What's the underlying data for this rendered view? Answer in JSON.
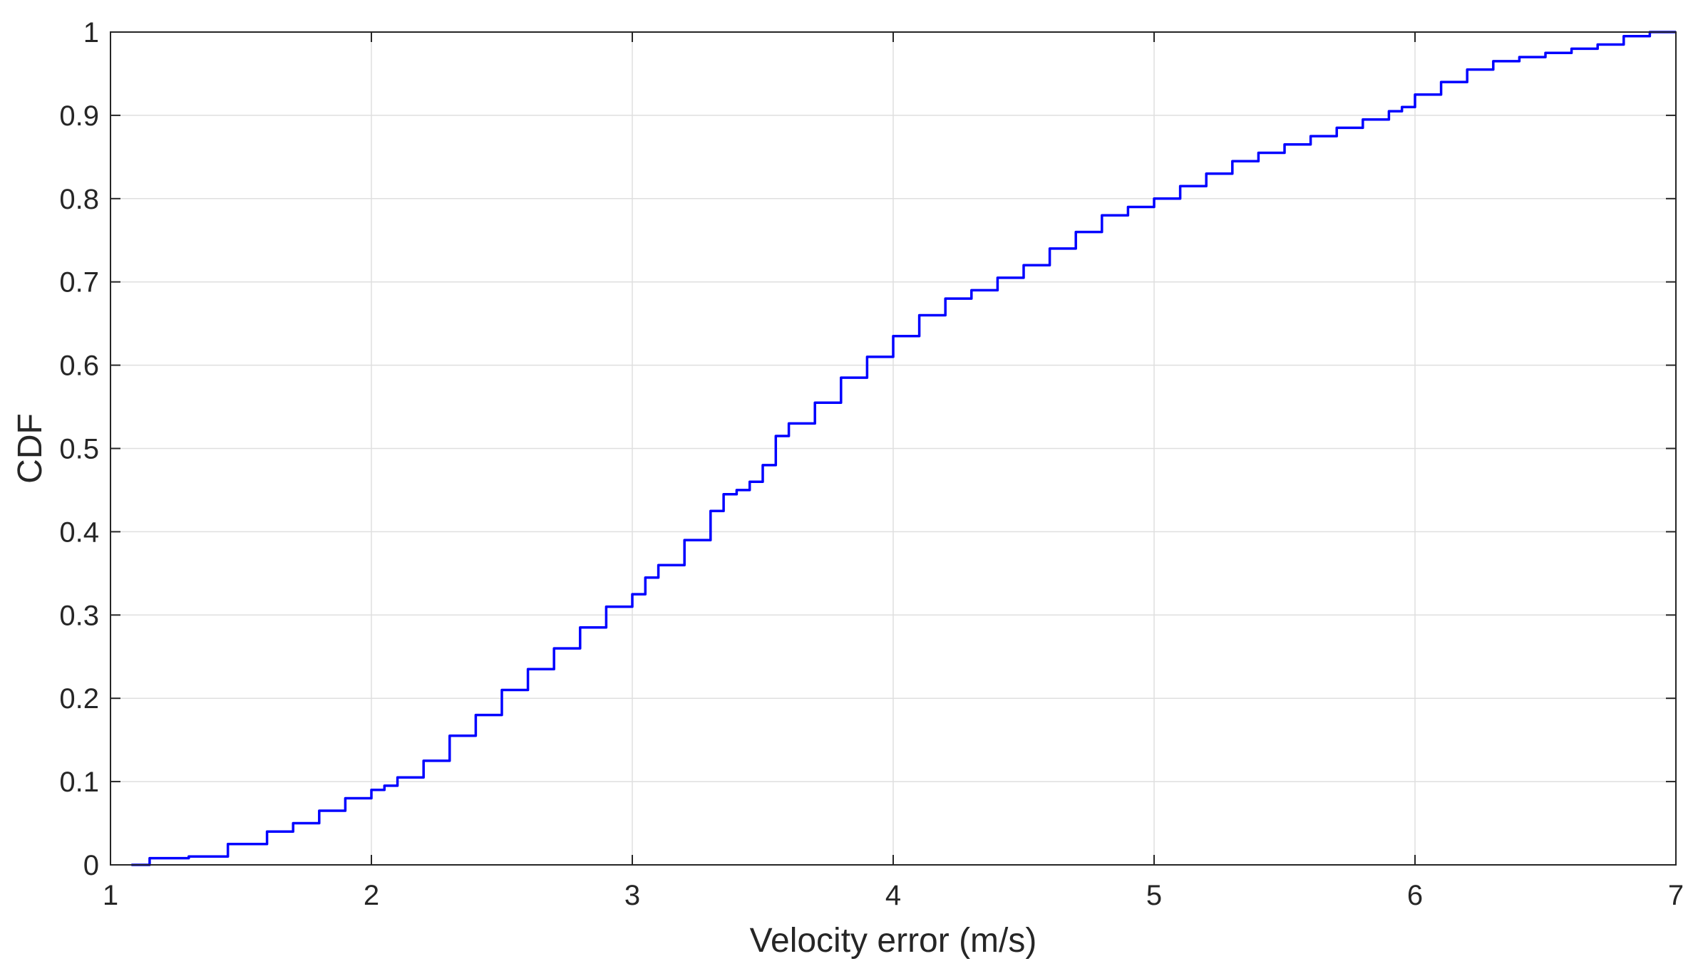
{
  "chart_data": {
    "type": "line",
    "title": "",
    "xlabel": "Velocity error (m/s)",
    "ylabel": "CDF",
    "xlim": [
      1,
      7
    ],
    "ylim": [
      0,
      1
    ],
    "xticks": [
      "1",
      "2",
      "3",
      "4",
      "5",
      "6",
      "7"
    ],
    "yticks": [
      "0",
      "0.1",
      "0.2",
      "0.3",
      "0.4",
      "0.5",
      "0.6",
      "0.7",
      "0.8",
      "0.9",
      "1"
    ],
    "grid": true,
    "line_color": "#0000ff",
    "series": [
      {
        "x": [
          1.08,
          1.15,
          1.3,
          1.45,
          1.6,
          1.7,
          1.8,
          1.9,
          2.0,
          2.05,
          2.1,
          2.2,
          2.3,
          2.4,
          2.5,
          2.6,
          2.7,
          2.8,
          2.9,
          3.0,
          3.05,
          3.1,
          3.2,
          3.3,
          3.35,
          3.4,
          3.45,
          3.5,
          3.55,
          3.6,
          3.7,
          3.8,
          3.9,
          4.0,
          4.1,
          4.2,
          4.3,
          4.4,
          4.5,
          4.6,
          4.7,
          4.8,
          4.9,
          5.0,
          5.1,
          5.2,
          5.3,
          5.4,
          5.5,
          5.6,
          5.7,
          5.8,
          5.9,
          5.95,
          6.0,
          6.1,
          6.2,
          6.3,
          6.4,
          6.5,
          6.6,
          6.7,
          6.8,
          6.9,
          7.0
        ],
        "y": [
          0.0,
          0.008,
          0.01,
          0.025,
          0.04,
          0.05,
          0.065,
          0.08,
          0.09,
          0.095,
          0.105,
          0.125,
          0.155,
          0.18,
          0.21,
          0.235,
          0.26,
          0.285,
          0.31,
          0.325,
          0.345,
          0.36,
          0.39,
          0.425,
          0.445,
          0.45,
          0.46,
          0.48,
          0.515,
          0.53,
          0.555,
          0.585,
          0.61,
          0.635,
          0.66,
          0.68,
          0.69,
          0.705,
          0.72,
          0.74,
          0.76,
          0.78,
          0.79,
          0.8,
          0.815,
          0.83,
          0.845,
          0.855,
          0.865,
          0.875,
          0.885,
          0.895,
          0.905,
          0.91,
          0.925,
          0.94,
          0.955,
          0.965,
          0.97,
          0.975,
          0.98,
          0.985,
          0.995,
          1.0,
          1.0
        ]
      }
    ]
  }
}
